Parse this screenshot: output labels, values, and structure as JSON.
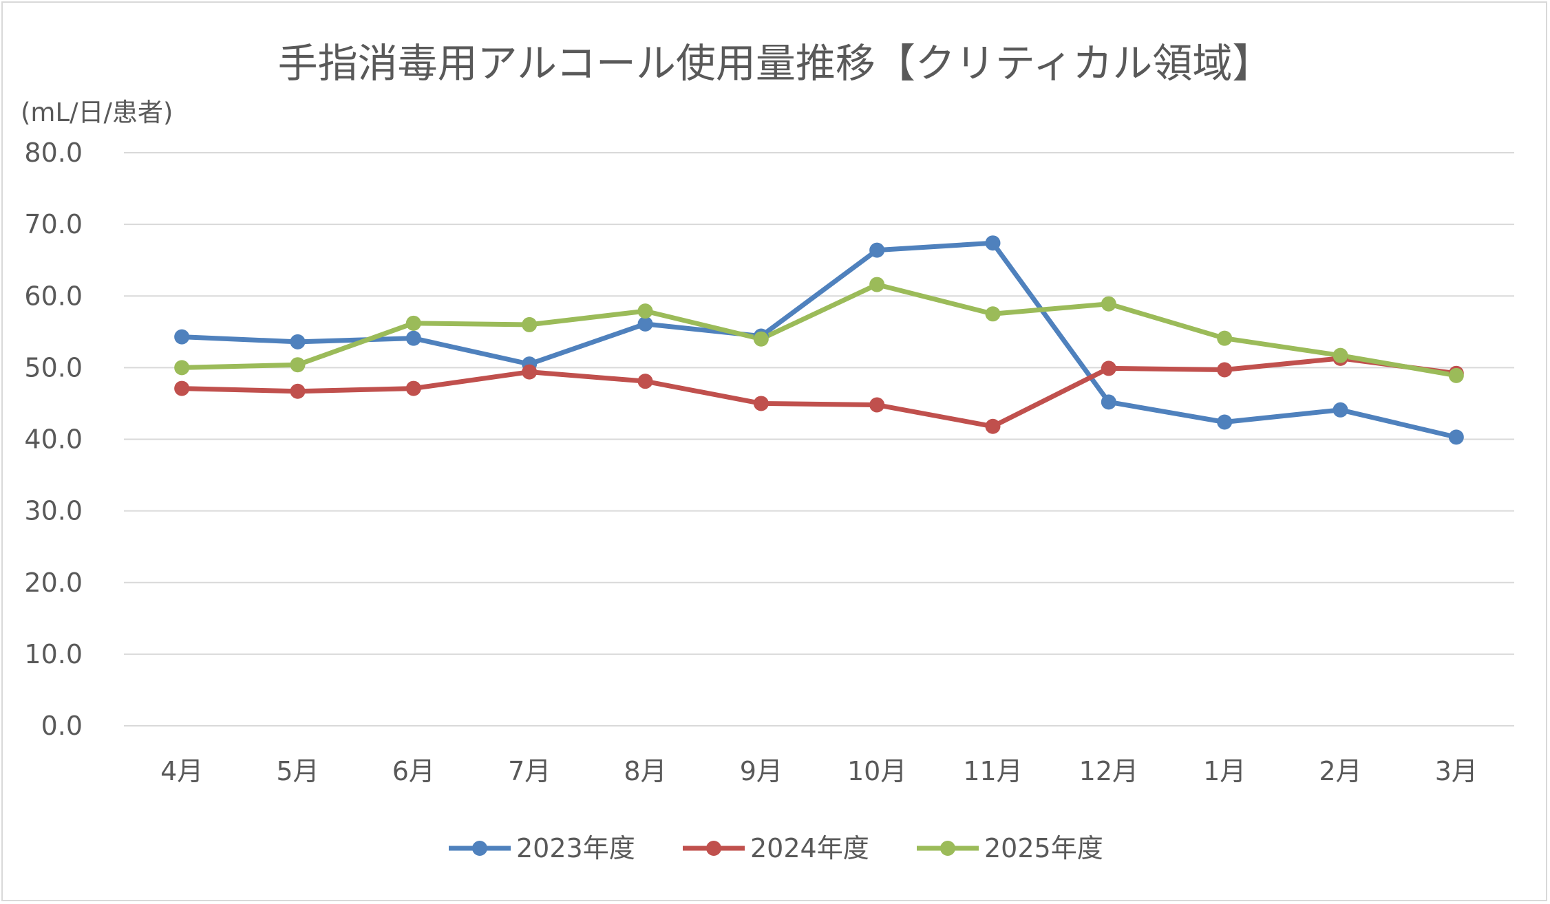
{
  "chart_data": {
    "type": "line",
    "title": "手指消毒用アルコール使用量推移【クリティカル領域】",
    "ylabel": "(mL/日/患者)",
    "xlabel": "",
    "ylim": [
      0,
      80
    ],
    "yticks": [
      "0.0",
      "10.0",
      "20.0",
      "30.0",
      "40.0",
      "50.0",
      "60.0",
      "70.0",
      "80.0"
    ],
    "categories": [
      "4月",
      "5月",
      "6月",
      "7月",
      "8月",
      "9月",
      "10月",
      "11月",
      "12月",
      "1月",
      "2月",
      "3月"
    ],
    "grid": true,
    "legend_position": "bottom",
    "series": [
      {
        "name": "2023年度",
        "color": "#4f81bd",
        "values": [
          54.3,
          53.6,
          54.1,
          50.5,
          56.1,
          54.4,
          66.4,
          67.4,
          45.2,
          42.4,
          44.1,
          40.3
        ]
      },
      {
        "name": "2024年度",
        "color": "#c0504d",
        "values": [
          47.1,
          46.7,
          47.1,
          49.4,
          48.1,
          45.0,
          44.8,
          41.8,
          49.9,
          49.7,
          51.3,
          49.2
        ]
      },
      {
        "name": "2025年度",
        "color": "#9bbb59",
        "values": [
          50.0,
          50.4,
          56.2,
          56.0,
          57.9,
          54.0,
          61.6,
          57.5,
          58.9,
          54.1,
          51.7,
          48.9
        ]
      }
    ]
  }
}
